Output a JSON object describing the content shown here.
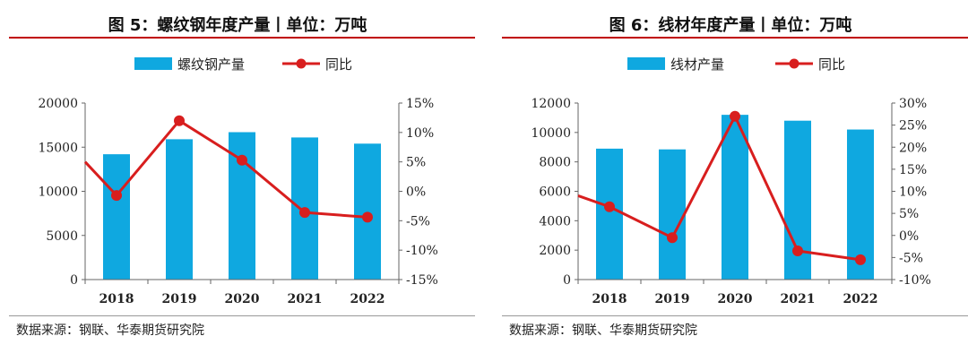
{
  "chart_data": [
    {
      "type": "bar",
      "title": "图 5：螺纹钢年度产量丨单位：万吨",
      "categories": [
        "2018",
        "2019",
        "2020",
        "2021",
        "2022"
      ],
      "series": [
        {
          "name": "螺纹钢产量",
          "type": "bar",
          "axis": "left",
          "values": [
            14200,
            15900,
            16700,
            16100,
            15400
          ]
        },
        {
          "name": "同比",
          "type": "line",
          "axis": "right",
          "values": [
            -0.7,
            12.0,
            5.3,
            -3.6,
            -4.4
          ],
          "lead_in": 5.0
        }
      ],
      "ylim_left": [
        0,
        20000
      ],
      "yticks_left": [
        "0",
        "5000",
        "10000",
        "15000",
        "20000"
      ],
      "ylim_right": [
        -15,
        15
      ],
      "yticks_right": [
        "-15%",
        "-10%",
        "-5%",
        "0%",
        "5%",
        "10%",
        "15%"
      ],
      "legend_position": "top-center",
      "grid": false,
      "colors": {
        "bar": "#0fa8e0",
        "line": "#d81e1e"
      },
      "source": "数据来源：钢联、华泰期货研究院"
    },
    {
      "type": "bar",
      "title": "图 6：线材年度产量丨单位：万吨",
      "categories": [
        "2018",
        "2019",
        "2020",
        "2021",
        "2022"
      ],
      "series": [
        {
          "name": "线材产量",
          "type": "bar",
          "axis": "left",
          "values": [
            8900,
            8850,
            11200,
            10800,
            10200
          ]
        },
        {
          "name": "同比",
          "type": "line",
          "axis": "right",
          "values": [
            6.5,
            -0.5,
            27.0,
            -3.5,
            -5.5
          ],
          "lead_in": 9.0
        }
      ],
      "ylim_left": [
        0,
        12000
      ],
      "yticks_left": [
        "0",
        "2000",
        "4000",
        "6000",
        "8000",
        "10000",
        "12000"
      ],
      "ylim_right": [
        -10,
        30
      ],
      "yticks_right": [
        "-10%",
        "-5%",
        "0%",
        "5%",
        "10%",
        "15%",
        "20%",
        "25%",
        "30%"
      ],
      "legend_position": "top-center",
      "grid": false,
      "colors": {
        "bar": "#0fa8e0",
        "line": "#d81e1e"
      },
      "source": "数据来源：钢联、华泰期货研究院"
    }
  ]
}
